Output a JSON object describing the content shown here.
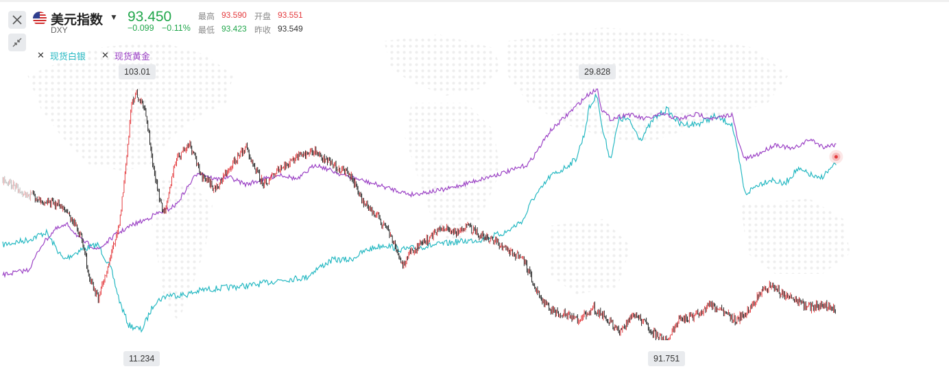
{
  "header": {
    "symbol_name": "美元指数",
    "symbol_code": "DXY",
    "price": "93.450",
    "change": "−0.099",
    "change_pct": "−0.11%",
    "high_label": "最高",
    "high_value": "93.590",
    "open_label": "开盘",
    "open_value": "93.551",
    "low_label": "最低",
    "low_value": "93.423",
    "prev_label": "昨收",
    "prev_value": "93.549"
  },
  "legend": [
    {
      "label": "现货白银",
      "color": "#25b8c2"
    },
    {
      "label": "现货黄金",
      "color": "#9b41c5"
    }
  ],
  "colors": {
    "up": "#e4393c",
    "down": "#1f1f1f",
    "silver": "#25b8c2",
    "gold": "#9b41c5",
    "green": "#1fa64a"
  },
  "icons": {
    "close": "close-icon",
    "collapse": "collapse-arrows-icon",
    "flag": "us-flag-icon",
    "caret": "caret-down-icon"
  },
  "chart_data": {
    "type": "line",
    "title": "",
    "xlabel": "",
    "ylabel": "",
    "series": [
      {
        "name": "美元指数",
        "style": "candlestick",
        "min": 91.751,
        "max": 103.01,
        "shape": [
          [
            0,
            0.36
          ],
          [
            0.03,
            0.42
          ],
          [
            0.07,
            0.47
          ],
          [
            0.09,
            0.58
          ],
          [
            0.1,
            0.75
          ],
          [
            0.11,
            0.84
          ],
          [
            0.12,
            0.72
          ],
          [
            0.135,
            0.52
          ],
          [
            0.145,
            0.2
          ],
          [
            0.148,
            0.05
          ],
          [
            0.155,
            0.02
          ],
          [
            0.165,
            0.1
          ],
          [
            0.175,
            0.35
          ],
          [
            0.185,
            0.5
          ],
          [
            0.2,
            0.28
          ],
          [
            0.215,
            0.22
          ],
          [
            0.23,
            0.35
          ],
          [
            0.245,
            0.4
          ],
          [
            0.26,
            0.32
          ],
          [
            0.28,
            0.23
          ],
          [
            0.3,
            0.38
          ],
          [
            0.32,
            0.32
          ],
          [
            0.34,
            0.27
          ],
          [
            0.36,
            0.25
          ],
          [
            0.38,
            0.3
          ],
          [
            0.4,
            0.34
          ],
          [
            0.415,
            0.45
          ],
          [
            0.43,
            0.5
          ],
          [
            0.445,
            0.57
          ],
          [
            0.46,
            0.7
          ],
          [
            0.47,
            0.65
          ],
          [
            0.49,
            0.6
          ],
          [
            0.505,
            0.55
          ],
          [
            0.52,
            0.57
          ],
          [
            0.535,
            0.55
          ],
          [
            0.55,
            0.58
          ],
          [
            0.565,
            0.6
          ],
          [
            0.58,
            0.64
          ],
          [
            0.6,
            0.68
          ],
          [
            0.615,
            0.8
          ],
          [
            0.63,
            0.88
          ],
          [
            0.65,
            0.9
          ],
          [
            0.665,
            0.92
          ],
          [
            0.68,
            0.87
          ],
          [
            0.695,
            0.91
          ],
          [
            0.71,
            0.97
          ],
          [
            0.725,
            0.9
          ],
          [
            0.74,
            0.93
          ],
          [
            0.755,
            0.99
          ],
          [
            0.765,
            1
          ],
          [
            0.78,
            0.92
          ],
          [
            0.8,
            0.9
          ],
          [
            0.815,
            0.86
          ],
          [
            0.83,
            0.89
          ],
          [
            0.845,
            0.92
          ],
          [
            0.86,
            0.88
          ],
          [
            0.87,
            0.82
          ],
          [
            0.885,
            0.78
          ],
          [
            0.9,
            0.82
          ],
          [
            0.915,
            0.85
          ],
          [
            0.93,
            0.87
          ],
          [
            0.945,
            0.86
          ],
          [
            0.96,
            0.88
          ]
        ]
      },
      {
        "name": "现货白银",
        "min": 11.234,
        "max": 29.828,
        "shape": [
          [
            0,
            0.62
          ],
          [
            0.03,
            0.6
          ],
          [
            0.05,
            0.57
          ],
          [
            0.07,
            0.68
          ],
          [
            0.09,
            0.64
          ],
          [
            0.11,
            0.62
          ],
          [
            0.125,
            0.72
          ],
          [
            0.135,
            0.85
          ],
          [
            0.145,
            0.94
          ],
          [
            0.16,
            0.96
          ],
          [
            0.175,
            0.85
          ],
          [
            0.19,
            0.82
          ],
          [
            0.21,
            0.82
          ],
          [
            0.23,
            0.8
          ],
          [
            0.26,
            0.79
          ],
          [
            0.29,
            0.78
          ],
          [
            0.32,
            0.76
          ],
          [
            0.35,
            0.75
          ],
          [
            0.36,
            0.72
          ],
          [
            0.38,
            0.68
          ],
          [
            0.4,
            0.68
          ],
          [
            0.42,
            0.64
          ],
          [
            0.44,
            0.62
          ],
          [
            0.46,
            0.64
          ],
          [
            0.48,
            0.63
          ],
          [
            0.5,
            0.62
          ],
          [
            0.52,
            0.61
          ],
          [
            0.55,
            0.6
          ],
          [
            0.58,
            0.57
          ],
          [
            0.6,
            0.52
          ],
          [
            0.61,
            0.44
          ],
          [
            0.62,
            0.4
          ],
          [
            0.63,
            0.35
          ],
          [
            0.645,
            0.32
          ],
          [
            0.66,
            0.28
          ],
          [
            0.67,
            0.18
          ],
          [
            0.675,
            0.08
          ],
          [
            0.685,
            0.02
          ],
          [
            0.69,
            0.15
          ],
          [
            0.7,
            0.28
          ],
          [
            0.71,
            0.12
          ],
          [
            0.72,
            0.12
          ],
          [
            0.735,
            0.2
          ],
          [
            0.75,
            0.12
          ],
          [
            0.765,
            0.08
          ],
          [
            0.78,
            0.14
          ],
          [
            0.8,
            0.14
          ],
          [
            0.82,
            0.11
          ],
          [
            0.84,
            0.14
          ],
          [
            0.848,
            0.28
          ],
          [
            0.855,
            0.42
          ],
          [
            0.87,
            0.38
          ],
          [
            0.885,
            0.36
          ],
          [
            0.9,
            0.38
          ],
          [
            0.915,
            0.32
          ],
          [
            0.93,
            0.34
          ],
          [
            0.94,
            0.36
          ],
          [
            0.96,
            0.3
          ]
        ]
      },
      {
        "name": "现货黄金",
        "min": 1050,
        "max": 2070,
        "shape": [
          [
            0,
            0.74
          ],
          [
            0.03,
            0.72
          ],
          [
            0.045,
            0.62
          ],
          [
            0.06,
            0.56
          ],
          [
            0.075,
            0.54
          ],
          [
            0.09,
            0.6
          ],
          [
            0.11,
            0.64
          ],
          [
            0.13,
            0.58
          ],
          [
            0.15,
            0.54
          ],
          [
            0.165,
            0.52
          ],
          [
            0.175,
            0.5
          ],
          [
            0.19,
            0.48
          ],
          [
            0.2,
            0.46
          ],
          [
            0.215,
            0.38
          ],
          [
            0.225,
            0.33
          ],
          [
            0.245,
            0.36
          ],
          [
            0.26,
            0.35
          ],
          [
            0.28,
            0.38
          ],
          [
            0.3,
            0.36
          ],
          [
            0.32,
            0.34
          ],
          [
            0.34,
            0.36
          ],
          [
            0.35,
            0.33
          ],
          [
            0.36,
            0.3
          ],
          [
            0.375,
            0.32
          ],
          [
            0.39,
            0.34
          ],
          [
            0.41,
            0.36
          ],
          [
            0.43,
            0.38
          ],
          [
            0.45,
            0.4
          ],
          [
            0.47,
            0.42
          ],
          [
            0.49,
            0.41
          ],
          [
            0.51,
            0.4
          ],
          [
            0.53,
            0.38
          ],
          [
            0.55,
            0.36
          ],
          [
            0.57,
            0.34
          ],
          [
            0.59,
            0.32
          ],
          [
            0.605,
            0.3
          ],
          [
            0.615,
            0.25
          ],
          [
            0.63,
            0.17
          ],
          [
            0.645,
            0.12
          ],
          [
            0.66,
            0.07
          ],
          [
            0.675,
            0.02
          ],
          [
            0.685,
            0
          ],
          [
            0.69,
            0.08
          ],
          [
            0.7,
            0.12
          ],
          [
            0.72,
            0.1
          ],
          [
            0.74,
            0.12
          ],
          [
            0.76,
            0.1
          ],
          [
            0.78,
            0.12
          ],
          [
            0.8,
            0.1
          ],
          [
            0.82,
            0.12
          ],
          [
            0.84,
            0.1
          ],
          [
            0.848,
            0.22
          ],
          [
            0.855,
            0.28
          ],
          [
            0.87,
            0.26
          ],
          [
            0.89,
            0.22
          ],
          [
            0.91,
            0.24
          ],
          [
            0.93,
            0.2
          ],
          [
            0.945,
            0.23
          ],
          [
            0.96,
            0.22
          ]
        ]
      }
    ],
    "annotations": [
      {
        "text": "103.01",
        "series": "美元指数",
        "type": "max"
      },
      {
        "text": "11.234",
        "series": "现货白银",
        "type": "min"
      },
      {
        "text": "29.828",
        "series": "现货白银",
        "type": "max"
      },
      {
        "text": "91.751",
        "series": "美元指数",
        "type": "min"
      }
    ],
    "grid": false,
    "legend_position": "top-left"
  }
}
